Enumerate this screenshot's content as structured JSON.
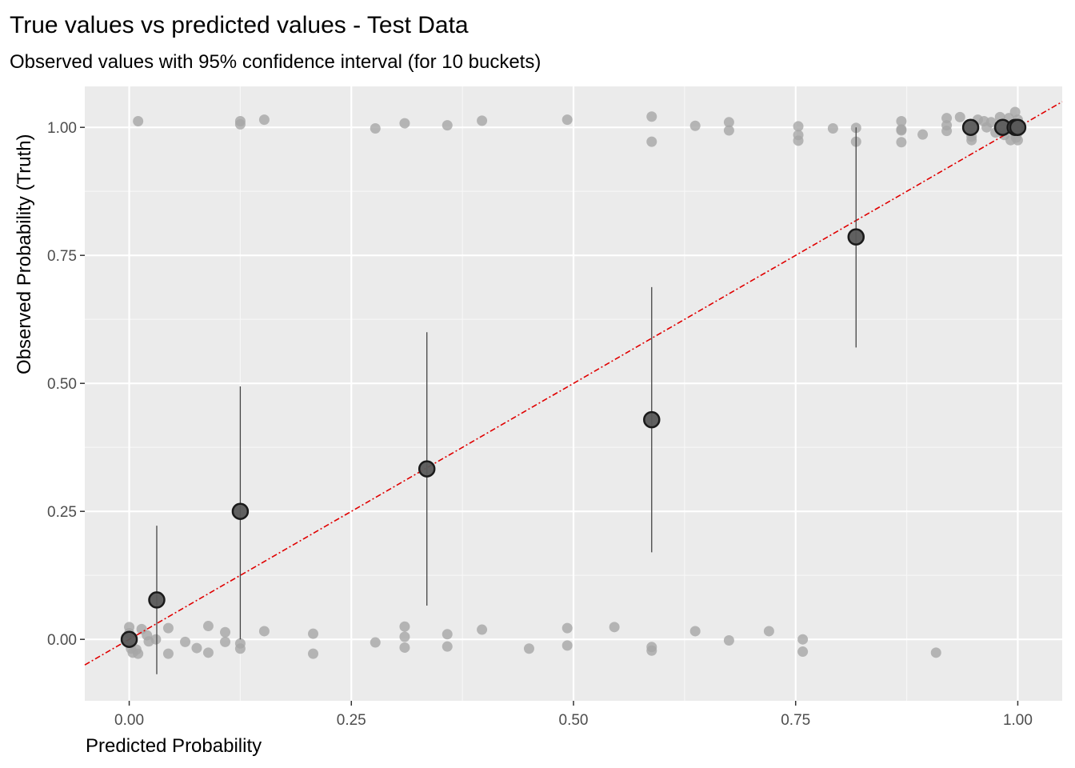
{
  "chart_data": {
    "type": "scatter",
    "title": "True values vs predicted values - Test Data",
    "subtitle": "Observed values with 95% confidence interval (for 10 buckets)",
    "xlabel": "Predicted Probability",
    "ylabel": "Observed Probability (Truth)",
    "xlim": [
      -0.05,
      1.05
    ],
    "ylim": [
      -0.12,
      1.08
    ],
    "x_ticks": [
      0,
      0.25,
      0.5,
      0.75,
      1
    ],
    "x_tick_labels": [
      "0.00",
      "0.25",
      "0.50",
      "0.75",
      "1.00"
    ],
    "y_ticks": [
      0,
      0.25,
      0.5,
      0.75,
      1
    ],
    "y_tick_labels": [
      "0.00",
      "0.25",
      "0.50",
      "0.75",
      "1.00"
    ],
    "grid": true,
    "background_color": "#ebebeb",
    "reference_line": {
      "slope": 1,
      "intercept": 0,
      "style": "dashed",
      "color": "#e00000"
    },
    "series": [
      {
        "role": "jittered observations",
        "color": "#a6a6a6",
        "points": [
          [
            0.01,
            1.012
          ],
          [
            0.125,
            1.012
          ],
          [
            0.125,
            1.006
          ],
          [
            0.152,
            1.015
          ],
          [
            0.277,
            0.998
          ],
          [
            0.31,
            1.008
          ],
          [
            0.358,
            1.004
          ],
          [
            0.397,
            1.013
          ],
          [
            0.493,
            1.015
          ],
          [
            0.588,
            1.021
          ],
          [
            0.588,
            0.972
          ],
          [
            0.637,
            1.003
          ],
          [
            0.675,
            1.01
          ],
          [
            0.675,
            0.994
          ],
          [
            0.753,
            1.002
          ],
          [
            0.753,
            0.985
          ],
          [
            0.753,
            0.974
          ],
          [
            0.792,
            0.998
          ],
          [
            0.818,
            0.999
          ],
          [
            0.818,
            0.972
          ],
          [
            0.869,
            1.012
          ],
          [
            0.869,
            0.996
          ],
          [
            0.869,
            0.994
          ],
          [
            0.869,
            0.971
          ],
          [
            0.893,
            0.986
          ],
          [
            0.92,
            1.018
          ],
          [
            0.92,
            1.004
          ],
          [
            0.92,
            0.993
          ],
          [
            0.935,
            1.02
          ],
          [
            0.948,
            0.982
          ],
          [
            0.948,
            0.975
          ],
          [
            0.955,
            1.015
          ],
          [
            0.962,
            1.012
          ],
          [
            0.97,
            1.01
          ],
          [
            0.975,
            0.99
          ],
          [
            0.98,
            1.02
          ],
          [
            0.985,
            0.985
          ],
          [
            0.99,
            1.018
          ],
          [
            0.992,
            0.975
          ],
          [
            0.997,
            1.03
          ],
          [
            0.998,
            0.98
          ],
          [
            1.0,
            1.015
          ],
          [
            1.0,
            0.975
          ],
          [
            1.0,
            0.99
          ],
          [
            0.965,
            1.0
          ],
          [
            0.0,
            0.024
          ],
          [
            0.0,
            0.012
          ],
          [
            0.002,
            -0.018
          ],
          [
            0.004,
            -0.026
          ],
          [
            0.008,
            -0.02
          ],
          [
            0.01,
            -0.028
          ],
          [
            0.014,
            0.02
          ],
          [
            0.02,
            0.008
          ],
          [
            0.022,
            -0.004
          ],
          [
            0.03,
            0.0
          ],
          [
            0.044,
            0.022
          ],
          [
            0.044,
            -0.028
          ],
          [
            0.063,
            -0.005
          ],
          [
            0.076,
            -0.017
          ],
          [
            0.089,
            0.026
          ],
          [
            0.089,
            -0.026
          ],
          [
            0.108,
            0.014
          ],
          [
            0.108,
            -0.005
          ],
          [
            0.125,
            -0.008
          ],
          [
            0.125,
            -0.018
          ],
          [
            0.152,
            0.016
          ],
          [
            0.207,
            0.011
          ],
          [
            0.207,
            -0.028
          ],
          [
            0.277,
            -0.006
          ],
          [
            0.31,
            0.025
          ],
          [
            0.31,
            0.005
          ],
          [
            0.31,
            -0.016
          ],
          [
            0.358,
            0.01
          ],
          [
            0.358,
            -0.014
          ],
          [
            0.397,
            0.019
          ],
          [
            0.45,
            -0.018
          ],
          [
            0.493,
            0.022
          ],
          [
            0.493,
            -0.012
          ],
          [
            0.546,
            0.024
          ],
          [
            0.588,
            -0.015
          ],
          [
            0.588,
            -0.022
          ],
          [
            0.637,
            0.016
          ],
          [
            0.675,
            -0.002
          ],
          [
            0.72,
            0.016
          ],
          [
            0.758,
            0.0
          ],
          [
            0.758,
            -0.024
          ],
          [
            0.908,
            -0.026
          ]
        ]
      },
      {
        "role": "bucket means with 95% CI",
        "color": "#595959",
        "points": [
          {
            "x": 0.0,
            "y": 0.0,
            "ci": [
              0.0,
              0.0
            ]
          },
          {
            "x": 0.031,
            "y": 0.077,
            "ci": [
              -0.068,
              0.222
            ]
          },
          {
            "x": 0.125,
            "y": 0.25,
            "ci": [
              0.0,
              0.494
            ]
          },
          {
            "x": 0.335,
            "y": 0.333,
            "ci": [
              0.066,
              0.6
            ]
          },
          {
            "x": 0.588,
            "y": 0.429,
            "ci": [
              0.17,
              0.688
            ]
          },
          {
            "x": 0.818,
            "y": 0.786,
            "ci": [
              0.57,
              1.0
            ]
          },
          {
            "x": 0.947,
            "y": 1.0,
            "ci": [
              1.0,
              1.0
            ]
          },
          {
            "x": 0.983,
            "y": 1.0,
            "ci": [
              1.0,
              1.0
            ]
          },
          {
            "x": 0.997,
            "y": 1.0,
            "ci": [
              1.0,
              1.0
            ]
          },
          {
            "x": 1.0,
            "y": 1.0,
            "ci": [
              1.0,
              1.0
            ]
          }
        ]
      }
    ]
  }
}
